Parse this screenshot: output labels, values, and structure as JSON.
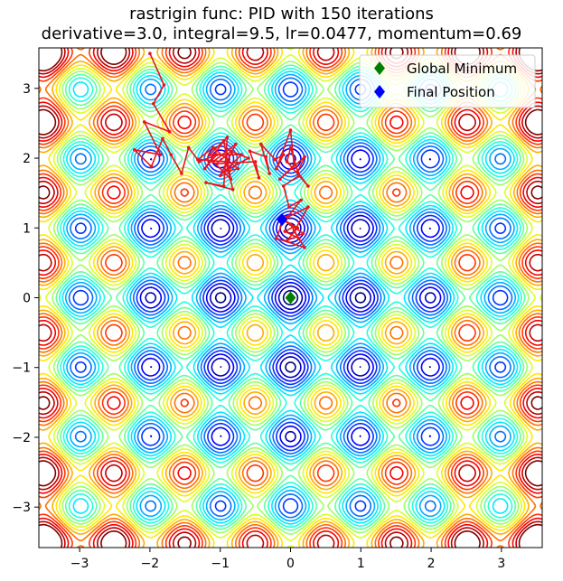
{
  "chart_data": {
    "type": "contour",
    "title_line1": "rastrigin func: PID with 150 iterations",
    "title_line2": "derivative=3.0, integral=9.5, lr=0.0477, momentum=0.69",
    "xlim": [
      -3.58,
      3.58
    ],
    "ylim": [
      -3.58,
      3.58
    ],
    "xticks": [
      -3,
      -2,
      -1,
      0,
      1,
      2,
      3
    ],
    "yticks": [
      -3,
      -2,
      -1,
      0,
      1,
      2,
      3
    ],
    "xtick_labels": [
      "−3",
      "−2",
      "−1",
      "0",
      "1",
      "2",
      "3"
    ],
    "ytick_labels": [
      "−3",
      "−2",
      "−1",
      "0",
      "1",
      "2",
      "3"
    ],
    "contour_levels": [
      2,
      5,
      8,
      11,
      14,
      17,
      20,
      23,
      26,
      29,
      32,
      35,
      38,
      41,
      44,
      47,
      50,
      53
    ],
    "colormap": "jet",
    "grid": false,
    "legend_position": "top-right",
    "legend": [
      {
        "label": "Global Minimum",
        "color": "#008000",
        "marker": "diamond"
      },
      {
        "label": "Final Position",
        "color": "#0000ff",
        "marker": "diamond"
      }
    ],
    "global_minimum": {
      "x": 0.0,
      "y": 0.0
    },
    "final_position": {
      "x": -0.12,
      "y": 1.12
    },
    "path_color": "#e8141e",
    "path": [
      [
        -2.0,
        3.5
      ],
      [
        -1.8,
        3.05
      ],
      [
        -1.95,
        2.78
      ],
      [
        -1.72,
        2.38
      ],
      [
        -2.08,
        2.52
      ],
      [
        -1.85,
        2.05
      ],
      [
        -2.22,
        2.12
      ],
      [
        -1.98,
        1.88
      ],
      [
        -1.82,
        2.28
      ],
      [
        -1.7,
        2.05
      ],
      [
        -1.55,
        1.78
      ],
      [
        -1.45,
        2.15
      ],
      [
        -1.3,
        1.95
      ],
      [
        -1.05,
        2.05
      ],
      [
        -1.22,
        1.85
      ],
      [
        -0.95,
        2.25
      ],
      [
        -0.85,
        1.7
      ],
      [
        -1.1,
        1.95
      ],
      [
        -0.78,
        2.2
      ],
      [
        -1.0,
        1.75
      ],
      [
        -0.7,
        2.05
      ],
      [
        -1.15,
        2.05
      ],
      [
        -0.9,
        2.3
      ],
      [
        -0.95,
        1.6
      ],
      [
        -1.2,
        1.65
      ],
      [
        -0.82,
        1.55
      ],
      [
        -0.92,
        1.95
      ],
      [
        -1.32,
        1.98
      ],
      [
        -1.1,
        2.15
      ],
      [
        -0.75,
        1.85
      ],
      [
        -0.95,
        1.8
      ],
      [
        -0.6,
        2.0
      ],
      [
        -0.85,
        2.1
      ],
      [
        -1.05,
        1.92
      ],
      [
        -0.5,
        1.95
      ],
      [
        -0.45,
        1.72
      ],
      [
        -0.58,
        2.1
      ],
      [
        -0.35,
        2.02
      ],
      [
        -0.3,
        1.78
      ],
      [
        -0.42,
        2.2
      ],
      [
        -0.22,
        1.98
      ],
      [
        -0.1,
        2.05
      ],
      [
        -0.2,
        1.85
      ],
      [
        0.0,
        2.4
      ],
      [
        0.05,
        1.9
      ],
      [
        -0.15,
        1.7
      ],
      [
        0.2,
        2.02
      ],
      [
        0.1,
        1.8
      ],
      [
        0.25,
        1.6
      ],
      [
        -0.05,
        1.95
      ],
      [
        0.0,
        2.15
      ],
      [
        0.12,
        1.75
      ],
      [
        -0.1,
        1.6
      ],
      [
        -0.02,
        1.3
      ],
      [
        0.15,
        1.4
      ],
      [
        -0.05,
        1.15
      ],
      [
        0.25,
        1.3
      ],
      [
        0.05,
        0.95
      ],
      [
        0.2,
        0.72
      ],
      [
        -0.2,
        0.85
      ],
      [
        -0.1,
        1.12
      ],
      [
        0.1,
        1.0
      ],
      [
        -0.05,
        0.82
      ],
      [
        0.18,
        0.92
      ],
      [
        0.0,
        1.05
      ],
      [
        0.12,
        0.85
      ],
      [
        -0.08,
        0.95
      ],
      [
        0.05,
        1.02
      ],
      [
        -0.12,
        1.12
      ]
    ]
  }
}
